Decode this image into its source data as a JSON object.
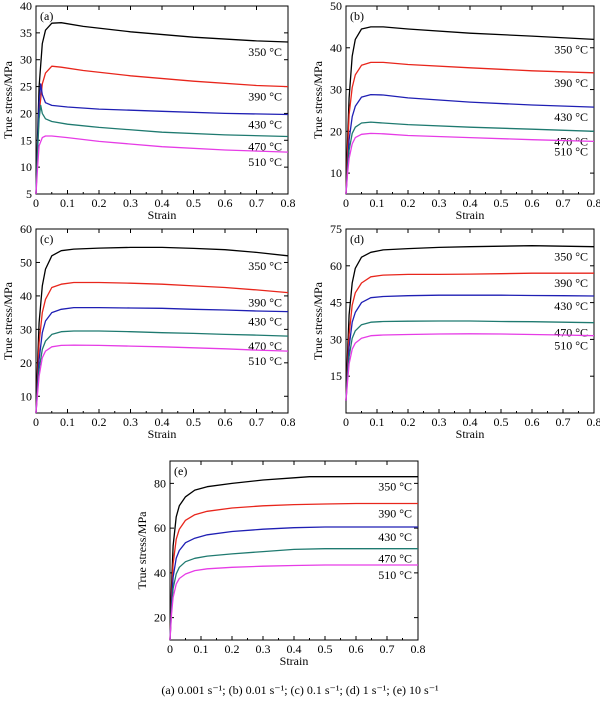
{
  "caption": "(a) 0.001 s⁻¹; (b) 0.01 s⁻¹; (c) 0.1 s⁻¹; (d) 1 s⁻¹; (e) 10 s⁻¹",
  "colors": {
    "350": "#000000",
    "390": "#e8261c",
    "430": "#1f1fb4",
    "470": "#1f7a70",
    "510": "#e63ce6"
  },
  "chart_data": [
    {
      "type": "line",
      "panel": "(a)",
      "xlabel": "Strain",
      "ylabel": "True stress/MPa",
      "xlim": [
        0,
        0.8
      ],
      "ylim": [
        5,
        40
      ],
      "xticks": [
        "0",
        "0.1",
        "0.2",
        "0.3",
        "0.4",
        "0.5",
        "0.6",
        "0.7",
        "0.8"
      ],
      "yticks": [
        5,
        10,
        15,
        20,
        25,
        30,
        35,
        40
      ],
      "series": [
        {
          "name": "350 °C",
          "key": "350",
          "x": [
            0,
            0.005,
            0.01,
            0.02,
            0.03,
            0.05,
            0.08,
            0.15,
            0.3,
            0.5,
            0.7,
            0.8
          ],
          "y": [
            5,
            16,
            25,
            33,
            35.5,
            36.8,
            36.9,
            36.2,
            35.2,
            34.2,
            33.5,
            33.3
          ],
          "label_y": 33.3
        },
        {
          "name": "390 °C",
          "key": "390",
          "x": [
            0,
            0.005,
            0.01,
            0.02,
            0.03,
            0.05,
            0.08,
            0.15,
            0.3,
            0.5,
            0.7,
            0.8
          ],
          "y": [
            5,
            14,
            20,
            25.5,
            27.5,
            28.8,
            28.6,
            28,
            27,
            26,
            25.2,
            25
          ],
          "label_y": 25
        },
        {
          "name": "430 °C",
          "key": "430",
          "x": [
            0,
            0.005,
            0.01,
            0.015,
            0.02,
            0.03,
            0.05,
            0.1,
            0.2,
            0.4,
            0.6,
            0.8
          ],
          "y": [
            5,
            14,
            22,
            25.5,
            23.5,
            22,
            21.5,
            21.2,
            20.8,
            20.4,
            20,
            19.8
          ],
          "label_y": 19.8
        },
        {
          "name": "470 °C",
          "key": "470",
          "x": [
            0,
            0.005,
            0.01,
            0.015,
            0.02,
            0.03,
            0.05,
            0.1,
            0.2,
            0.4,
            0.6,
            0.8
          ],
          "y": [
            5,
            13,
            19,
            21.5,
            20,
            19,
            18.5,
            18,
            17.4,
            16.5,
            16,
            15.7
          ],
          "label_y": 15.7
        },
        {
          "name": "510 °C",
          "key": "510",
          "x": [
            0,
            0.005,
            0.01,
            0.02,
            0.03,
            0.05,
            0.1,
            0.2,
            0.4,
            0.6,
            0.8
          ],
          "y": [
            5,
            10,
            14,
            15.5,
            15.8,
            15.8,
            15.5,
            14.8,
            13.8,
            13.2,
            12.8
          ],
          "label_y": 12.8
        }
      ]
    },
    {
      "type": "line",
      "panel": "(b)",
      "xlabel": "Strain",
      "ylabel": "True stress/MPa",
      "xlim": [
        0,
        0.8
      ],
      "ylim": [
        5,
        50
      ],
      "xticks": [
        "0",
        "0.1",
        "0.2",
        "0.3",
        "0.4",
        "0.5",
        "0.6",
        "0.7",
        "0.8"
      ],
      "yticks": [
        10,
        20,
        30,
        40,
        50
      ],
      "series": [
        {
          "name": "350 °C",
          "key": "350",
          "x": [
            0,
            0.005,
            0.01,
            0.02,
            0.03,
            0.05,
            0.08,
            0.12,
            0.2,
            0.4,
            0.6,
            0.8
          ],
          "y": [
            5,
            18,
            28,
            38,
            42,
            44.5,
            45,
            45,
            44.5,
            43.5,
            42.8,
            42
          ],
          "label_y": 42
        },
        {
          "name": "390 °C",
          "key": "390",
          "x": [
            0,
            0.005,
            0.01,
            0.02,
            0.03,
            0.05,
            0.08,
            0.12,
            0.2,
            0.4,
            0.6,
            0.8
          ],
          "y": [
            5,
            15,
            24,
            30.5,
            33.5,
            35.8,
            36.5,
            36.5,
            36,
            35.2,
            34.5,
            34
          ],
          "label_y": 34
        },
        {
          "name": "430 °C",
          "key": "430",
          "x": [
            0,
            0.005,
            0.01,
            0.02,
            0.03,
            0.05,
            0.08,
            0.12,
            0.2,
            0.4,
            0.6,
            0.8
          ],
          "y": [
            5,
            12,
            18,
            23.5,
            26,
            28.2,
            28.8,
            28.7,
            28,
            27,
            26.3,
            25.8
          ],
          "label_y": 25.8
        },
        {
          "name": "470 °C",
          "key": "470",
          "x": [
            0,
            0.005,
            0.01,
            0.02,
            0.03,
            0.05,
            0.08,
            0.12,
            0.2,
            0.4,
            0.6,
            0.8
          ],
          "y": [
            5,
            11,
            15.5,
            19.5,
            21,
            22,
            22.2,
            22,
            21.6,
            21,
            20.5,
            20
          ],
          "label_y": 20
        },
        {
          "name": "510 °C",
          "key": "510",
          "x": [
            0,
            0.005,
            0.01,
            0.02,
            0.03,
            0.05,
            0.08,
            0.12,
            0.2,
            0.4,
            0.6,
            0.8
          ],
          "y": [
            5,
            10,
            13.5,
            17,
            18.5,
            19.3,
            19.5,
            19.4,
            19,
            18.5,
            18,
            17.6
          ],
          "label_y": 17.6
        }
      ]
    },
    {
      "type": "line",
      "panel": "(c)",
      "xlabel": "Strain",
      "ylabel": "True stress/MPa",
      "xlim": [
        0,
        0.8
      ],
      "ylim": [
        5,
        60
      ],
      "xticks": [
        "0",
        "0.1",
        "0.2",
        "0.3",
        "0.4",
        "0.5",
        "0.6",
        "0.7",
        "0.8"
      ],
      "yticks": [
        10,
        20,
        30,
        40,
        50,
        60
      ],
      "series": [
        {
          "name": "350 °C",
          "key": "350",
          "x": [
            0,
            0.005,
            0.01,
            0.02,
            0.03,
            0.05,
            0.08,
            0.12,
            0.2,
            0.3,
            0.4,
            0.5,
            0.6,
            0.7,
            0.8
          ],
          "y": [
            5,
            20,
            32,
            43,
            48,
            52,
            53.5,
            54,
            54.3,
            54.5,
            54.5,
            54.2,
            53.8,
            53,
            52
          ],
          "label_y": 52
        },
        {
          "name": "390 °C",
          "key": "390",
          "x": [
            0,
            0.005,
            0.01,
            0.02,
            0.03,
            0.05,
            0.08,
            0.12,
            0.2,
            0.3,
            0.4,
            0.5,
            0.6,
            0.7,
            0.8
          ],
          "y": [
            5,
            16,
            26,
            35,
            39,
            42.5,
            43.5,
            44,
            44,
            43.8,
            43.5,
            43,
            42.5,
            41.8,
            41
          ],
          "label_y": 41
        },
        {
          "name": "430 °C",
          "key": "430",
          "x": [
            0,
            0.005,
            0.01,
            0.02,
            0.03,
            0.05,
            0.08,
            0.12,
            0.2,
            0.3,
            0.4,
            0.5,
            0.6,
            0.7,
            0.8
          ],
          "y": [
            5,
            14,
            21,
            29,
            32.5,
            35,
            36,
            36.5,
            36.5,
            36.4,
            36.3,
            36,
            35.8,
            35.5,
            35.3
          ],
          "label_y": 35.3
        },
        {
          "name": "470 °C",
          "key": "470",
          "x": [
            0,
            0.005,
            0.01,
            0.02,
            0.03,
            0.05,
            0.08,
            0.12,
            0.2,
            0.3,
            0.4,
            0.5,
            0.6,
            0.7,
            0.8
          ],
          "y": [
            5,
            12,
            18,
            24,
            26.5,
            28.5,
            29.3,
            29.5,
            29.5,
            29.3,
            29,
            28.8,
            28.5,
            28.3,
            28
          ],
          "label_y": 28
        },
        {
          "name": "510 °C",
          "key": "510",
          "x": [
            0,
            0.005,
            0.01,
            0.02,
            0.03,
            0.05,
            0.08,
            0.12,
            0.2,
            0.3,
            0.4,
            0.5,
            0.6,
            0.7,
            0.8
          ],
          "y": [
            5,
            11,
            16,
            21.5,
            23.5,
            24.8,
            25.2,
            25.3,
            25.2,
            25,
            24.8,
            24.5,
            24.2,
            23.8,
            23.5
          ],
          "label_y": 23.5
        }
      ]
    },
    {
      "type": "line",
      "panel": "(d)",
      "xlabel": "Strain",
      "ylabel": "True stress/MPa",
      "xlim": [
        0,
        0.8
      ],
      "ylim": [
        0,
        75
      ],
      "xticks": [
        "0",
        "0.1",
        "0.2",
        "0.3",
        "0.4",
        "0.5",
        "0.6",
        "0.7",
        "0.8"
      ],
      "yticks": [
        15,
        30,
        45,
        60,
        75
      ],
      "series": [
        {
          "name": "350 °C",
          "key": "350",
          "x": [
            0,
            0.005,
            0.01,
            0.02,
            0.03,
            0.05,
            0.08,
            0.12,
            0.2,
            0.3,
            0.4,
            0.5,
            0.6,
            0.7,
            0.8
          ],
          "y": [
            5,
            25,
            40,
            53,
            59,
            63.5,
            65.5,
            66.5,
            67,
            67.5,
            67.8,
            68,
            68.2,
            68,
            67.8
          ],
          "label_y": 67.8
        },
        {
          "name": "390 °C",
          "key": "390",
          "x": [
            0,
            0.005,
            0.01,
            0.02,
            0.03,
            0.05,
            0.08,
            0.12,
            0.2,
            0.3,
            0.4,
            0.5,
            0.6,
            0.7,
            0.8
          ],
          "y": [
            5,
            20,
            32,
            44,
            49,
            53,
            55.5,
            56.2,
            56.5,
            56.5,
            56.6,
            56.8,
            57,
            57,
            57
          ],
          "label_y": 57
        },
        {
          "name": "430 °C",
          "key": "430",
          "x": [
            0,
            0.005,
            0.01,
            0.02,
            0.03,
            0.05,
            0.08,
            0.12,
            0.2,
            0.3,
            0.4,
            0.5,
            0.6,
            0.7,
            0.8
          ],
          "y": [
            5,
            17,
            27,
            37,
            41,
            45,
            47,
            47.5,
            47.8,
            48,
            48,
            48,
            47.9,
            47.8,
            47.7
          ],
          "label_y": 47.7
        },
        {
          "name": "470 °C",
          "key": "470",
          "x": [
            0,
            0.005,
            0.01,
            0.02,
            0.03,
            0.05,
            0.08,
            0.12,
            0.2,
            0.3,
            0.4,
            0.5,
            0.6,
            0.7,
            0.8
          ],
          "y": [
            5,
            15,
            23,
            30.5,
            33.5,
            36,
            37,
            37.3,
            37.4,
            37.5,
            37.5,
            37.3,
            37.2,
            37,
            36.8
          ],
          "label_y": 36.8
        },
        {
          "name": "510 °C",
          "key": "510",
          "x": [
            0,
            0.005,
            0.01,
            0.02,
            0.03,
            0.05,
            0.08,
            0.12,
            0.2,
            0.3,
            0.4,
            0.5,
            0.6,
            0.7,
            0.8
          ],
          "y": [
            5,
            13,
            20,
            26,
            28.5,
            30.5,
            31.5,
            31.8,
            32,
            32.2,
            32.3,
            32.2,
            32,
            31.8,
            31.5
          ],
          "label_y": 31.5
        }
      ]
    },
    {
      "type": "line",
      "panel": "(e)",
      "xlabel": "Strain",
      "ylabel": "True stress/MPa",
      "xlim": [
        0,
        0.8
      ],
      "ylim": [
        10,
        90
      ],
      "xticks": [
        "0",
        "0.1",
        "0.2",
        "0.3",
        "0.4",
        "0.5",
        "0.6",
        "0.7",
        "0.8"
      ],
      "yticks": [
        20,
        40,
        60,
        80
      ],
      "series": [
        {
          "name": "350 °C",
          "key": "350",
          "x": [
            0,
            0.005,
            0.01,
            0.02,
            0.03,
            0.05,
            0.08,
            0.12,
            0.2,
            0.3,
            0.4,
            0.45,
            0.5,
            0.6,
            0.7,
            0.8
          ],
          "y": [
            10,
            35,
            52,
            65,
            70,
            74,
            77,
            78.5,
            80,
            81.5,
            82.5,
            83,
            83,
            83,
            83,
            83
          ],
          "label_y": 83
        },
        {
          "name": "390 °C",
          "key": "390",
          "x": [
            0,
            0.005,
            0.01,
            0.02,
            0.03,
            0.05,
            0.08,
            0.12,
            0.2,
            0.3,
            0.4,
            0.5,
            0.6,
            0.7,
            0.8
          ],
          "y": [
            10,
            30,
            44,
            55,
            59.5,
            63.5,
            66,
            67.5,
            69,
            70,
            70.5,
            70.8,
            71,
            71,
            71
          ],
          "label_y": 71
        },
        {
          "name": "430 °C",
          "key": "430",
          "x": [
            0,
            0.005,
            0.01,
            0.02,
            0.03,
            0.05,
            0.08,
            0.12,
            0.2,
            0.3,
            0.4,
            0.5,
            0.6,
            0.7,
            0.8
          ],
          "y": [
            10,
            27,
            38,
            46.5,
            50,
            53.5,
            55.5,
            57,
            58.5,
            59.5,
            60.2,
            60.5,
            60.5,
            60.5,
            60.5
          ],
          "label_y": 60.5
        },
        {
          "name": "470 °C",
          "key": "470",
          "x": [
            0,
            0.005,
            0.01,
            0.02,
            0.03,
            0.05,
            0.08,
            0.12,
            0.2,
            0.3,
            0.4,
            0.5,
            0.6,
            0.7,
            0.8
          ],
          "y": [
            10,
            24,
            33,
            39.5,
            42.5,
            45,
            46.5,
            47.5,
            48.5,
            49.5,
            50.5,
            50.8,
            50.8,
            50.8,
            50.8
          ],
          "label_y": 50.8
        },
        {
          "name": "510 °C",
          "key": "510",
          "x": [
            0,
            0.005,
            0.01,
            0.02,
            0.03,
            0.05,
            0.08,
            0.12,
            0.2,
            0.3,
            0.4,
            0.5,
            0.6,
            0.7,
            0.8
          ],
          "y": [
            10,
            22,
            29,
            35,
            37.5,
            39.5,
            41,
            41.8,
            42.5,
            43,
            43.3,
            43.5,
            43.5,
            43.5,
            43.5
          ],
          "label_y": 43.5
        }
      ]
    }
  ]
}
